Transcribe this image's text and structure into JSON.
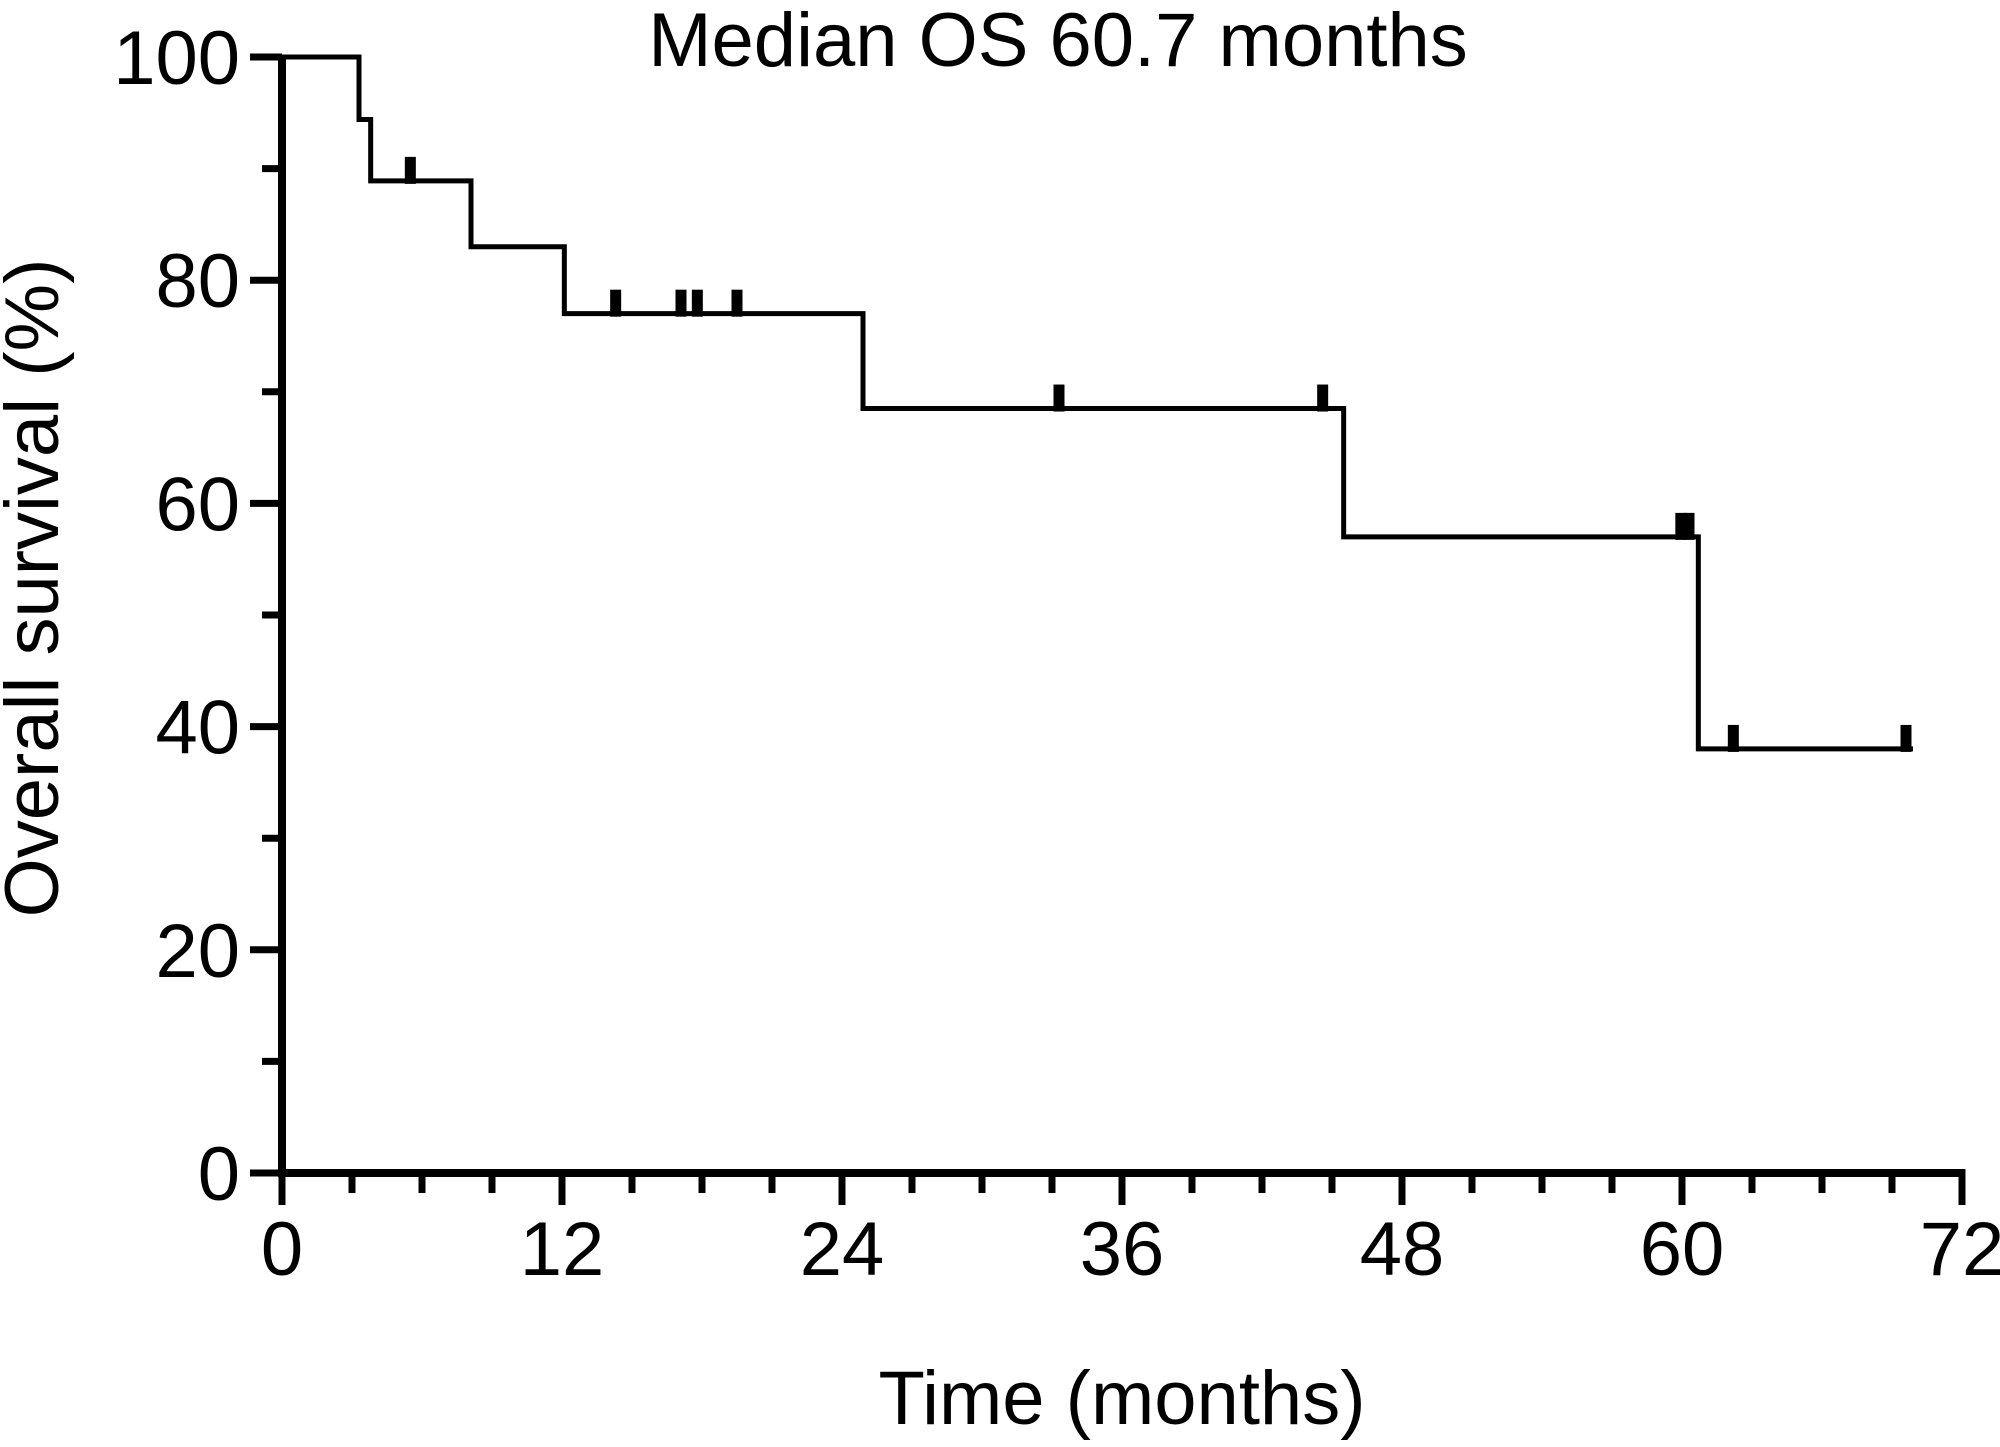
{
  "chart_data": {
    "type": "line",
    "subtype": "kaplan-meier-step",
    "title": "Median OS 60.7 months",
    "xlabel": "Time (months)",
    "ylabel": "Overall survival (%)",
    "xlim": [
      0,
      72
    ],
    "ylim": [
      0,
      100
    ],
    "xticks": [
      0,
      12,
      24,
      36,
      48,
      60,
      72
    ],
    "xtick_minor_step": 3,
    "yticks": [
      0,
      20,
      40,
      60,
      80,
      100
    ],
    "ytick_minor_step": 10,
    "grid": false,
    "legend": "none",
    "line_color": "#000000",
    "axis_color": "#000000",
    "background_color": "#ffffff",
    "median_os_months": 60.7,
    "series": [
      {
        "name": "Overall survival",
        "steps": [
          {
            "time": 0,
            "survival": 100
          },
          {
            "time": 3.3,
            "survival": 94.4
          },
          {
            "time": 3.8,
            "survival": 88.9
          },
          {
            "time": 8.1,
            "survival": 83.0
          },
          {
            "time": 12.1,
            "survival": 77.0
          },
          {
            "time": 24.9,
            "survival": 68.5
          },
          {
            "time": 45.5,
            "survival": 57.0
          },
          {
            "time": 60.7,
            "survival": 38.0
          }
        ],
        "end_time": 69.9,
        "censor_marks": [
          {
            "time": 5.5,
            "survival": 88.9
          },
          {
            "time": 14.3,
            "survival": 77.0
          },
          {
            "time": 17.1,
            "survival": 77.0
          },
          {
            "time": 17.8,
            "survival": 77.0
          },
          {
            "time": 19.5,
            "survival": 77.0
          },
          {
            "time": 33.3,
            "survival": 68.5
          },
          {
            "time": 44.6,
            "survival": 68.5
          },
          {
            "time": 59.95,
            "survival": 57.0
          },
          {
            "time": 60.3,
            "survival": 57.0
          },
          {
            "time": 62.2,
            "survival": 38.0
          },
          {
            "time": 69.6,
            "survival": 38.0
          }
        ]
      }
    ]
  }
}
